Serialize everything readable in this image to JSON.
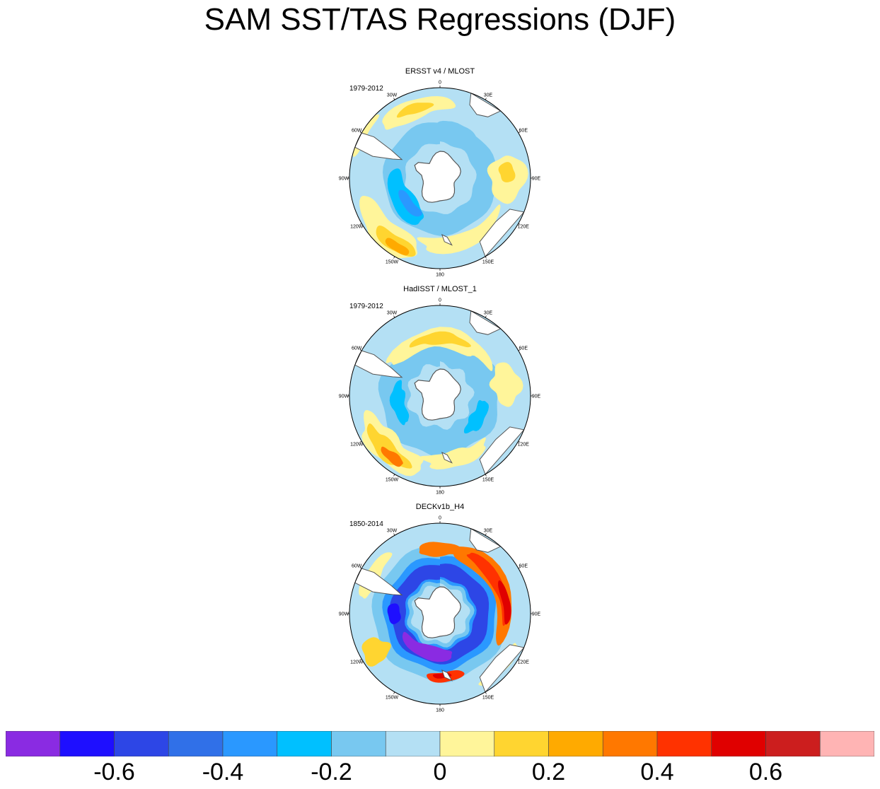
{
  "title": "SAM SST/TAS Regressions (DJF)",
  "panels": [
    {
      "title": "ERSST v4 / MLOST",
      "period": "1979-2012"
    },
    {
      "title": "HadISST / MLOST_1",
      "period": "1979-2012"
    },
    {
      "title": "DECKv1b_H4",
      "period": "1850-2014"
    }
  ],
  "longitude_labels": [
    "0",
    "30E",
    "60E",
    "90E",
    "120E",
    "150E",
    "180",
    "150W",
    "120W",
    "90W",
    "60W",
    "30W"
  ],
  "colorbar": {
    "colors": [
      "#8a2be2",
      "#1e0fff",
      "#2d46e6",
      "#3070e8",
      "#2a98ff",
      "#00c0ff",
      "#78c8f0",
      "#b4e0f4",
      "#fff59a",
      "#ffd530",
      "#ffaa00",
      "#ff7800",
      "#ff3200",
      "#e00000",
      "#cc1e1e",
      "#ffb4b4"
    ],
    "tick_labels": [
      "-0.6",
      "-0.4",
      "-0.2",
      "0",
      "0.2",
      "0.4",
      "0.6"
    ]
  },
  "chart_data": {
    "type": "heatmap",
    "projection": "south-polar-stereographic",
    "variable": "SST/TAS regression onto SAM index",
    "season": "DJF",
    "levels": [
      -0.7,
      -0.6,
      -0.5,
      -0.4,
      -0.3,
      -0.2,
      -0.1,
      0,
      0.1,
      0.2,
      0.3,
      0.4,
      0.5,
      0.6,
      0.7
    ],
    "maps": [
      {
        "dataset": "ERSST v4 / MLOST",
        "period": "1979-2012",
        "features": [
          {
            "region": "ring around Antarctica, 120W-180",
            "value_range": [
              -0.3,
              -0.1
            ]
          },
          {
            "region": "South Pacific 120W-150W midlatitudes",
            "value_range": [
              0.2,
              0.3
            ]
          },
          {
            "region": "South Atlantic 0-30W midlatitudes",
            "value_range": [
              0.2,
              0.3
            ]
          }
        ]
      },
      {
        "dataset": "HadISST / MLOST_1",
        "period": "1979-2012",
        "features": [
          {
            "region": "Southern Ocean ring",
            "value_range": [
              -0.3,
              -0.1
            ]
          },
          {
            "region": "South Pacific 120W-150W midlatitudes",
            "value_range": [
              0.2,
              0.5
            ]
          },
          {
            "region": "South Atlantic / Indian midlatitudes",
            "value_range": [
              0.1,
              0.3
            ]
          }
        ]
      },
      {
        "dataset": "DECKv1b_H4",
        "period": "1850-2014",
        "features": [
          {
            "region": "circumpolar ring near Antarctica",
            "value_range": [
              -0.7,
              -0.3
            ]
          },
          {
            "region": "midlatitude ring 30E-150E",
            "value_range": [
              0.3,
              0.7
            ]
          },
          {
            "region": "New Zealand sector",
            "value_range": [
              0.4,
              0.7
            ]
          }
        ]
      }
    ]
  }
}
